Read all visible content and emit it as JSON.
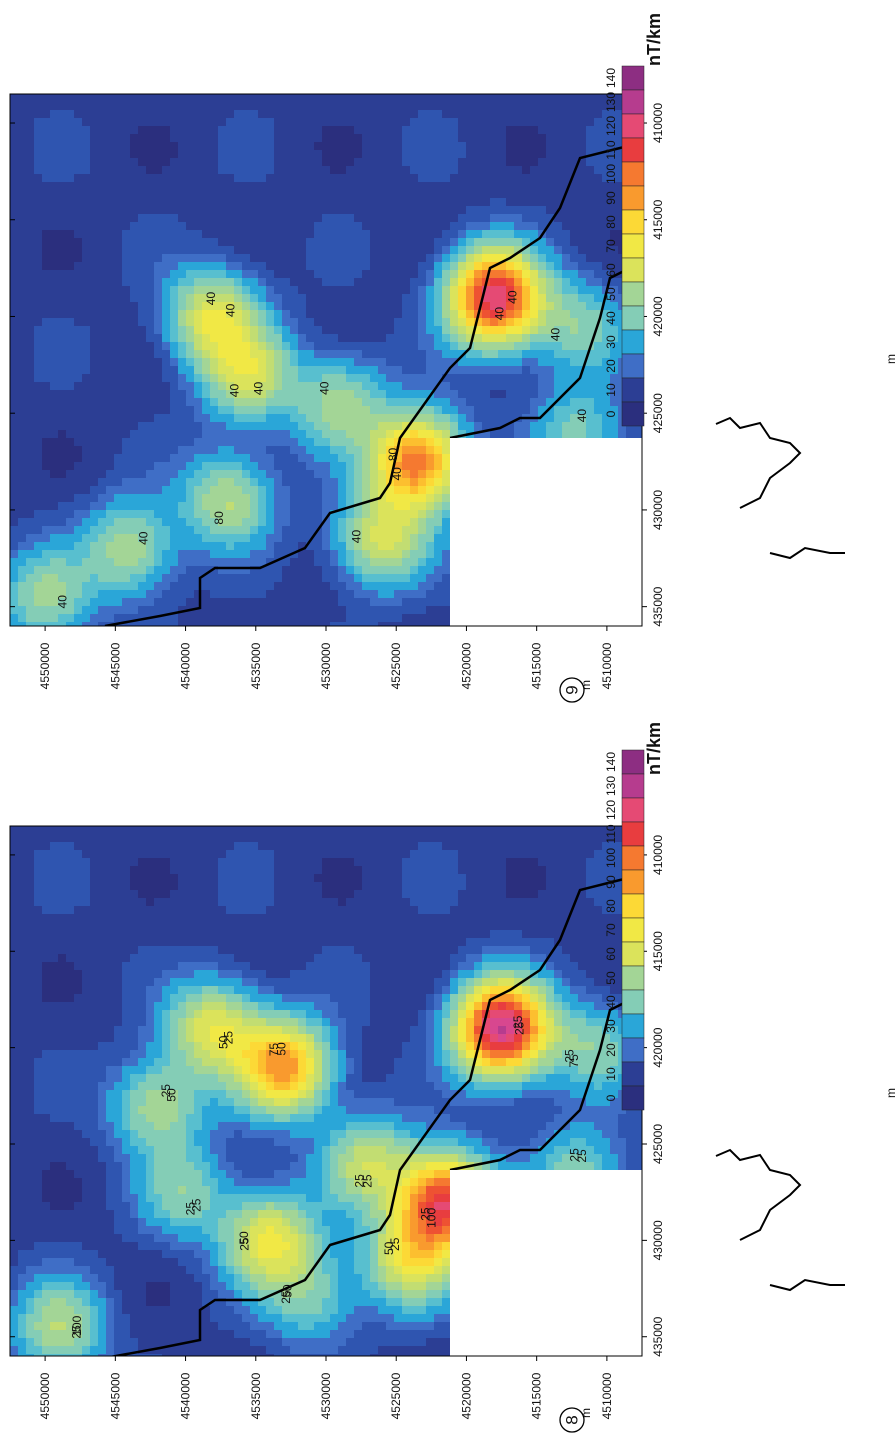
{
  "colors": {
    "scale": [
      "#2b2f7e",
      "#2c3e94",
      "#2f55b0",
      "#3f6ec6",
      "#2aa6d8",
      "#58bfcf",
      "#84cdb6",
      "#a3d596",
      "#c2dd72",
      "#dbe35b",
      "#f1e845",
      "#fcd936",
      "#fcbf2f",
      "#f99a2e",
      "#f57930",
      "#ee5232",
      "#e83d3f",
      "#e54a74",
      "#d8478f",
      "#b63c8e",
      "#8d2e82"
    ],
    "coast": "#000000",
    "mask": "#ffffff"
  },
  "colorbar": {
    "unit": "nT/km",
    "ticks": [
      "140",
      "130",
      "120",
      "110",
      "100",
      "90",
      "80",
      "70",
      "60",
      "50",
      "40",
      "30",
      "20",
      "10",
      "0"
    ]
  },
  "axes": {
    "x_label": "m",
    "y_label": "m",
    "x_ticks": [
      "410000",
      "415000",
      "420000",
      "425000",
      "430000",
      "435000"
    ],
    "y_ticks": [
      "4550000",
      "4545000",
      "4540000",
      "4535000",
      "4530000",
      "4525000",
      "4520000",
      "4515000",
      "4510000"
    ]
  },
  "panels": [
    {
      "id": "8",
      "contour_labels": [
        "25",
        "25",
        "50",
        "50",
        "50",
        "50",
        "25",
        "25",
        "25",
        "25",
        "25",
        "25",
        "50",
        "25",
        "100",
        "75",
        "25",
        "25",
        "25",
        "25",
        "50",
        "100",
        "75",
        "25",
        "25",
        "25"
      ],
      "peaks": [
        {
          "x": 419000,
          "y": 4517500,
          "v": 130
        },
        {
          "x": 428000,
          "y": 4521500,
          "v": 110
        },
        {
          "x": 421000,
          "y": 4533000,
          "v": 85
        },
        {
          "x": 419000,
          "y": 4538000,
          "v": 55
        },
        {
          "x": 430000,
          "y": 4534000,
          "v": 60
        },
        {
          "x": 423000,
          "y": 4542000,
          "v": 40
        },
        {
          "x": 426000,
          "y": 4527000,
          "v": 45
        },
        {
          "x": 431000,
          "y": 4524000,
          "v": 55
        },
        {
          "x": 434500,
          "y": 4549000,
          "v": 40
        },
        {
          "x": 420000,
          "y": 4511000,
          "v": 30
        },
        {
          "x": 426500,
          "y": 4512000,
          "v": 30
        },
        {
          "x": 427500,
          "y": 4540000,
          "v": 30
        },
        {
          "x": 433000,
          "y": 4531000,
          "v": 28
        }
      ]
    },
    {
      "id": "9",
      "contour_labels": [
        "40",
        "40",
        "40",
        "40",
        "40",
        "40",
        "80",
        "40",
        "40",
        "40",
        "40",
        "40",
        "80",
        "40",
        "40"
      ],
      "peaks": [
        {
          "x": 419000,
          "y": 4518000,
          "v": 120
        },
        {
          "x": 427500,
          "y": 4523500,
          "v": 95
        },
        {
          "x": 420000,
          "y": 4538000,
          "v": 55
        },
        {
          "x": 423000,
          "y": 4535500,
          "v": 48
        },
        {
          "x": 431500,
          "y": 4526000,
          "v": 50
        },
        {
          "x": 432000,
          "y": 4544000,
          "v": 40
        },
        {
          "x": 429500,
          "y": 4537000,
          "v": 42
        },
        {
          "x": 424500,
          "y": 4529000,
          "v": 38
        },
        {
          "x": 434500,
          "y": 4550000,
          "v": 35
        },
        {
          "x": 420500,
          "y": 4512000,
          "v": 30
        },
        {
          "x": 426000,
          "y": 4512000,
          "v": 28
        }
      ]
    }
  ]
}
